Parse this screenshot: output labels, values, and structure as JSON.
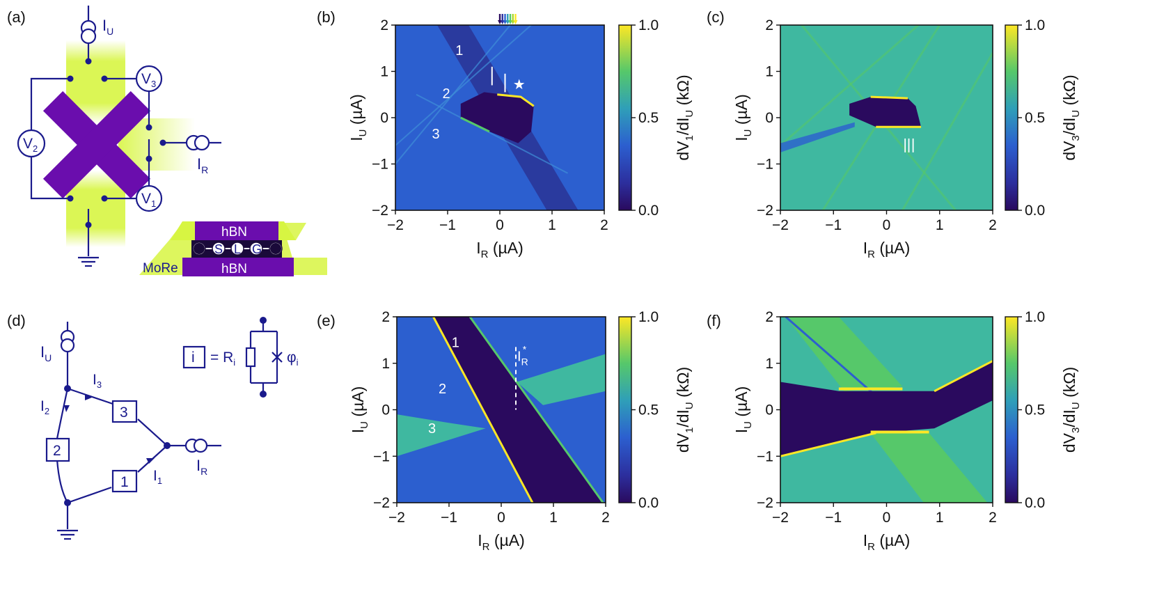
{
  "panel_labels": [
    "(a)",
    "(b)",
    "(c)",
    "(d)",
    "(e)",
    "(f)"
  ],
  "schematic_a": {
    "current_source_top": "I",
    "current_source_top_sub": "U",
    "current_source_right": "I",
    "current_source_right_sub": "R",
    "voltmeters": [
      {
        "main": "V",
        "sub": "3"
      },
      {
        "main": "V",
        "sub": "2"
      },
      {
        "main": "V",
        "sub": "1"
      }
    ],
    "stack_layers": {
      "top": "hBN",
      "bottom": "hBN",
      "middle": [
        "S",
        "L",
        "G"
      ],
      "contact": "MoRe"
    }
  },
  "circuit_d": {
    "source_top": "I",
    "source_top_sub": "U",
    "source_right": "I",
    "source_right_sub": "R",
    "junctions": [
      "1",
      "2",
      "3"
    ],
    "currents": [
      {
        "main": "I",
        "sub": "1"
      },
      {
        "main": "I",
        "sub": "2"
      },
      {
        "main": "I",
        "sub": "3"
      }
    ],
    "legend": {
      "box": "i",
      "eq": "= R",
      "eq_sub": "i",
      "phase": "φ",
      "phase_sub": "i"
    }
  },
  "chart_data": [
    {
      "panel": "(b)",
      "type": "heatmap",
      "xlabel": "I",
      "xlabel_sub": "R",
      "xlabel_unit": " (µA)",
      "ylabel": "I",
      "ylabel_sub": "U",
      "ylabel_unit": " (µA)",
      "xlim": [
        -2,
        2
      ],
      "ylim": [
        -2,
        2
      ],
      "xticks": [
        "−2",
        "−1",
        "0",
        "1",
        "2"
      ],
      "yticks": [
        "2",
        "1",
        "0",
        "−1",
        "−2"
      ],
      "colorbar": {
        "label_pre": "dV",
        "label_sub1": "1",
        "label_mid": "/dI",
        "label_sub2": "U",
        "label_post": " (kΩ)",
        "ticks": [
          "1.0",
          "0.5",
          "0.0"
        ],
        "range": [
          0,
          1
        ]
      },
      "annotations": [
        "1",
        "2",
        "3"
      ],
      "marker": "★"
    },
    {
      "panel": "(c)",
      "type": "heatmap",
      "xlabel": "I",
      "xlabel_sub": "R",
      "xlabel_unit": " (µA)",
      "ylabel": "I",
      "ylabel_sub": "U",
      "ylabel_unit": " (µA)",
      "xlim": [
        -2,
        2
      ],
      "ylim": [
        -2,
        2
      ],
      "xticks": [
        "−2",
        "−1",
        "0",
        "1",
        "2"
      ],
      "yticks": [
        "2",
        "1",
        "0",
        "−1",
        "−2"
      ],
      "colorbar": {
        "label_pre": "dV",
        "label_sub1": "3",
        "label_mid": "/dI",
        "label_sub2": "U",
        "label_post": " (kΩ)",
        "ticks": [
          "1.0",
          "0.5",
          "0.0"
        ],
        "range": [
          0,
          1
        ]
      }
    },
    {
      "panel": "(e)",
      "type": "heatmap",
      "xlabel": "I",
      "xlabel_sub": "R",
      "xlabel_unit": " (µA)",
      "ylabel": "I",
      "ylabel_sub": "U",
      "ylabel_unit": " (µA)",
      "xlim": [
        -2,
        2
      ],
      "ylim": [
        -2,
        2
      ],
      "xticks": [
        "−2",
        "−1",
        "0",
        "1",
        "2"
      ],
      "yticks": [
        "2",
        "1",
        "0",
        "−1",
        "−2"
      ],
      "colorbar": {
        "label_pre": "dV",
        "label_sub1": "1",
        "label_mid": "/dI",
        "label_sub2": "U",
        "label_post": " (kΩ)",
        "ticks": [
          "1.0",
          "0.5",
          "0.0"
        ],
        "range": [
          0,
          1
        ]
      },
      "annotations": [
        "1",
        "2",
        "3"
      ],
      "marker_label": "I",
      "marker_sub": "R",
      "marker_sup": "*",
      "marker_x": 0.28
    },
    {
      "panel": "(f)",
      "type": "heatmap",
      "xlabel": "I",
      "xlabel_sub": "R",
      "xlabel_unit": " (µA)",
      "ylabel": "I",
      "ylabel_sub": "U",
      "ylabel_unit": " (µA)",
      "xlim": [
        -2,
        2
      ],
      "ylim": [
        -2,
        2
      ],
      "xticks": [
        "−2",
        "−1",
        "0",
        "1",
        "2"
      ],
      "yticks": [
        "2",
        "1",
        "0",
        "−1",
        "−2"
      ],
      "colorbar": {
        "label_pre": "dV",
        "label_sub1": "3",
        "label_mid": "/dI",
        "label_sub2": "U",
        "label_post": " (kΩ)",
        "ticks": [
          "1.0",
          "0.5",
          "0.0"
        ],
        "range": [
          0,
          1
        ]
      }
    }
  ],
  "colors": {
    "navy": "#1a1a8c",
    "purple": "#6a0dad",
    "lime": "#d7f542",
    "dark": "#2a0a5e",
    "blue": "#2c5fcf",
    "teal": "#3fb8a0",
    "yellow": "#fde725"
  }
}
